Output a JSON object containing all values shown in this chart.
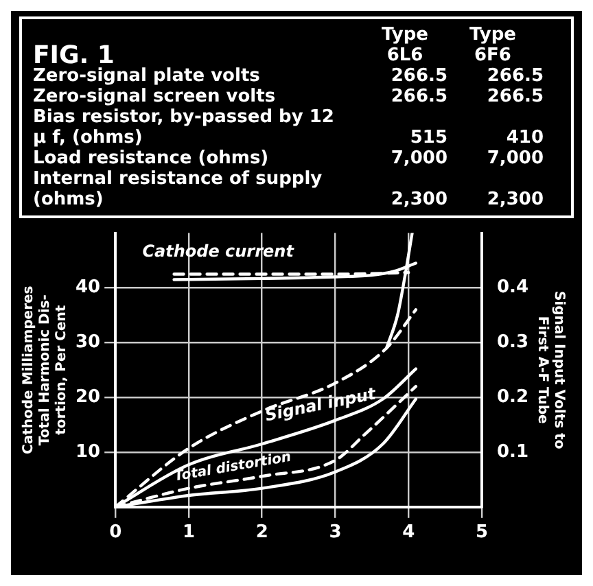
{
  "chart_data": {
    "type": "line",
    "title": "FIG. 1",
    "annotations": [
      "\tType 6L6\tType 6F6",
      "Zero-signal plate volts\t266.5\t266.5",
      "Zero-signal screen volts\t266.5\t266.5",
      "Bias resistor, by-passed by 12 μ f, (ohms)\t515\t410",
      "Load resistance (ohms)\t7,000\t7,000",
      "Internal resistance of supply (ohms)\t2,300\t2,300",
      "Cathode current",
      "Signal input",
      "Total distortion"
    ],
    "ylabel": [
      "Cathode Milliamperes",
      "Total Harmonic Dis-",
      "tortion, Per Cent"
    ],
    "y2label": [
      "Signal Input Volts to",
      "First A-F Tube"
    ],
    "xlim": [
      0,
      5
    ],
    "xticks": [
      0,
      1,
      2,
      3,
      4,
      5
    ],
    "ylim": [
      0,
      50
    ],
    "yticks": [
      10,
      20,
      30,
      40
    ],
    "y2lim": [
      0,
      0.5
    ],
    "y2ticks": [
      0.1,
      0.2,
      0.3,
      0.4
    ],
    "grid": true,
    "legend": false,
    "marker": "none",
    "series": [
      {
        "color": "#ffffff",
        "line_style": "solid",
        "x": [
          0.8,
          2,
          3,
          3.5,
          3.8,
          4.1
        ],
        "values": [
          41.5,
          41.7,
          42,
          42.3,
          43,
          44.5
        ]
      },
      {
        "color": "#ffffff",
        "line_style": "dashed",
        "x": [
          0.8,
          2,
          3,
          3.5,
          4
        ],
        "values": [
          42.5,
          42.5,
          42.5,
          42.6,
          42.8
        ]
      },
      {
        "color": "#ffffff",
        "line_style": "dashed",
        "axis": "y2",
        "x": [
          0,
          1,
          2,
          3,
          3.7,
          4.1
        ],
        "values": [
          0,
          0.107,
          0.175,
          0.226,
          0.29,
          0.36
        ]
      },
      {
        "color": "#ffffff",
        "line_style": "solid",
        "axis": "y2",
        "x": [
          0,
          1,
          2,
          3,
          3.65,
          4.1
        ],
        "values": [
          0,
          0.077,
          0.115,
          0.158,
          0.197,
          0.252
        ]
      },
      {
        "color": "#ffffff",
        "line_style": "solid",
        "x": [
          3.7,
          3.85,
          3.95,
          4.05
        ],
        "values": [
          29,
          35,
          42,
          50
        ]
      },
      {
        "color": "#ffffff",
        "line_style": "dashed",
        "x": [
          0,
          1,
          2,
          3,
          3.4,
          4.1
        ],
        "values": [
          0,
          3.4,
          5.6,
          8.5,
          13.2,
          22
        ]
      },
      {
        "color": "#ffffff",
        "line_style": "solid",
        "x": [
          0,
          1,
          2,
          3,
          3.65,
          4.1
        ],
        "values": [
          0,
          2.1,
          3.4,
          6.4,
          11.5,
          19.7
        ]
      }
    ]
  }
}
